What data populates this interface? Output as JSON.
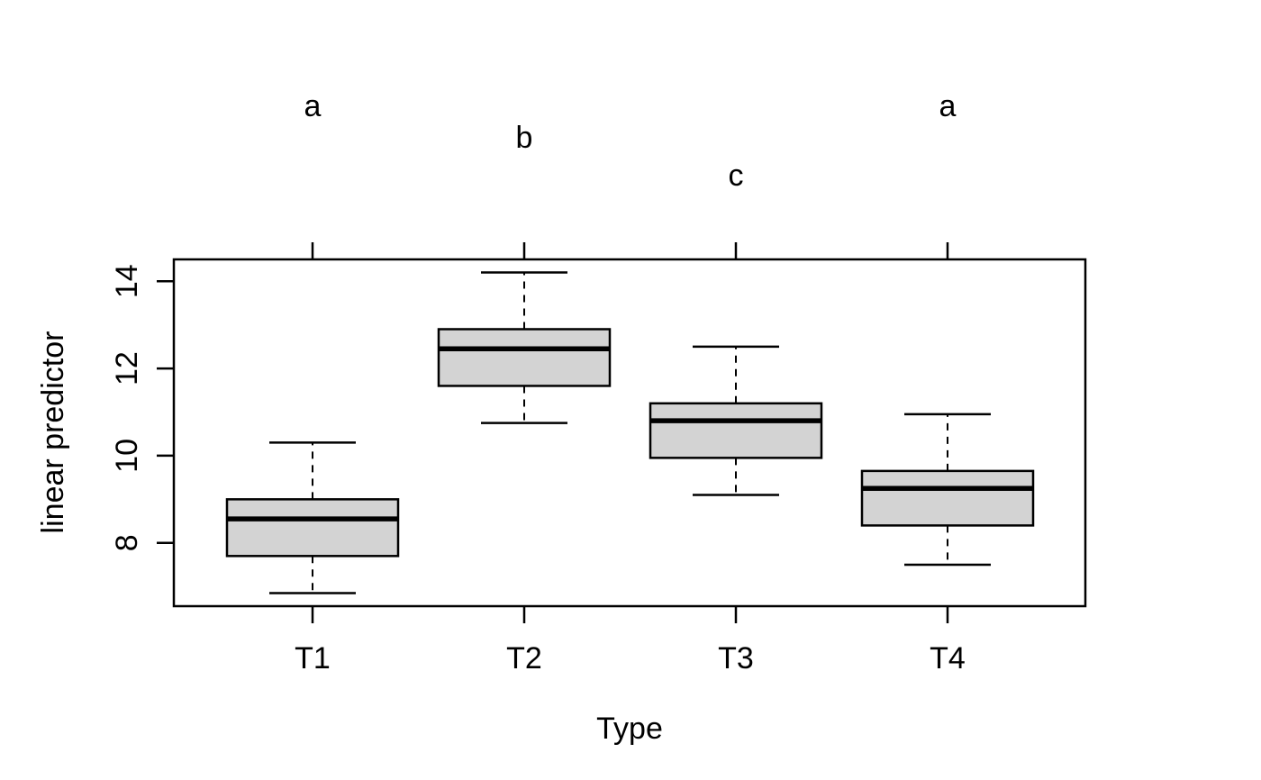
{
  "figure": {
    "background": "#ffffff"
  },
  "chart_data": {
    "type": "boxplot",
    "title": "",
    "xlabel": "Type",
    "ylabel": "linear predictor",
    "categories": [
      "T1",
      "T2",
      "T3",
      "T4"
    ],
    "ylim": [
      6.55,
      14.5
    ],
    "yticks": [
      8,
      10,
      12,
      14
    ],
    "grid": false,
    "legend": "none",
    "annotation_letters": [
      "a",
      "b",
      "c",
      "a"
    ],
    "boxes": [
      {
        "category": "T1",
        "letter": "a",
        "letter_row": 0,
        "whisker_low": 6.85,
        "q1": 7.7,
        "median": 8.55,
        "q3": 9.0,
        "whisker_high": 10.3
      },
      {
        "category": "T2",
        "letter": "b",
        "letter_row": 1,
        "whisker_low": 10.75,
        "q1": 11.6,
        "median": 12.45,
        "q3": 12.9,
        "whisker_high": 14.2
      },
      {
        "category": "T3",
        "letter": "c",
        "letter_row": 2,
        "whisker_low": 9.1,
        "q1": 9.95,
        "median": 10.8,
        "q3": 11.2,
        "whisker_high": 12.5
      },
      {
        "category": "T4",
        "letter": "a",
        "letter_row": 0,
        "whisker_low": 7.5,
        "q1": 8.4,
        "median": 9.25,
        "q3": 9.65,
        "whisker_high": 10.95
      }
    ],
    "colors": {
      "box_fill": "#d3d3d3",
      "stroke": "#000000",
      "median": "#000000",
      "background": "#ffffff"
    }
  }
}
